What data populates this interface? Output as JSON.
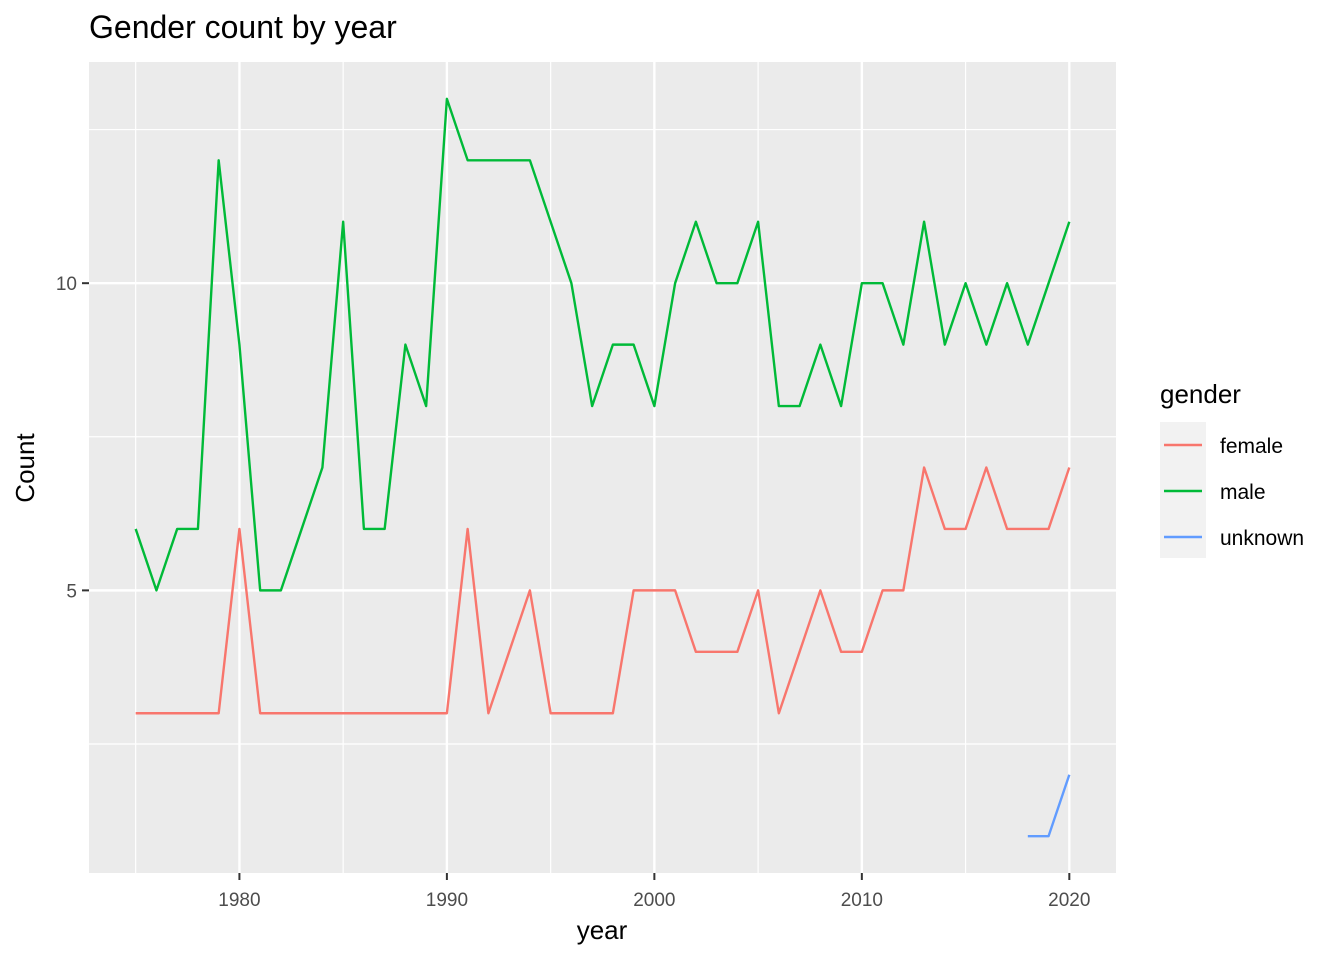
{
  "chart_data": {
    "type": "line",
    "title": "Gender count by year",
    "xlabel": "year",
    "ylabel": "Count",
    "xlim": [
      1972.75,
      2022.25
    ],
    "ylim": [
      0.4,
      13.6
    ],
    "x_ticks": [
      1980,
      1990,
      2000,
      2010,
      2020
    ],
    "y_ticks": [
      5,
      10
    ],
    "x_tick_labels": [
      "1980",
      "1990",
      "2000",
      "2010",
      "2020"
    ],
    "y_tick_labels": [
      "5",
      "10"
    ],
    "grid": true,
    "legend_title": "gender",
    "legend_position": "right",
    "series": [
      {
        "name": "female",
        "color": "#F8766D",
        "x": [
          1975,
          1976,
          1977,
          1978,
          1979,
          1980,
          1981,
          1982,
          1983,
          1984,
          1985,
          1986,
          1987,
          1988,
          1989,
          1990,
          1991,
          1992,
          1993,
          1994,
          1995,
          1996,
          1997,
          1998,
          1999,
          2000,
          2001,
          2002,
          2003,
          2004,
          2005,
          2006,
          2007,
          2008,
          2009,
          2010,
          2011,
          2012,
          2013,
          2014,
          2015,
          2016,
          2017,
          2018,
          2019,
          2020
        ],
        "values": [
          3,
          3,
          3,
          3,
          3,
          6,
          3,
          3,
          3,
          3,
          3,
          3,
          3,
          3,
          3,
          3,
          6,
          3,
          4,
          5,
          3,
          3,
          3,
          3,
          5,
          5,
          5,
          4,
          4,
          4,
          5,
          3,
          4,
          5,
          4,
          4,
          5,
          5,
          7,
          6,
          6,
          7,
          6,
          6,
          6,
          7
        ]
      },
      {
        "name": "male",
        "color": "#00BA38",
        "x": [
          1975,
          1976,
          1977,
          1978,
          1979,
          1980,
          1981,
          1982,
          1983,
          1984,
          1985,
          1986,
          1987,
          1988,
          1989,
          1990,
          1991,
          1992,
          1993,
          1994,
          1995,
          1996,
          1997,
          1998,
          1999,
          2000,
          2001,
          2002,
          2003,
          2004,
          2005,
          2006,
          2007,
          2008,
          2009,
          2010,
          2011,
          2012,
          2013,
          2014,
          2015,
          2016,
          2017,
          2018,
          2019,
          2020
        ],
        "values": [
          6,
          5,
          6,
          6,
          12,
          9,
          5,
          5,
          6,
          7,
          11,
          6,
          6,
          9,
          8,
          13,
          12,
          12,
          12,
          12,
          11,
          10,
          8,
          9,
          9,
          8,
          10,
          11,
          10,
          10,
          11,
          8,
          8,
          9,
          8,
          10,
          10,
          9,
          11,
          9,
          10,
          9,
          10,
          9,
          10,
          11
        ]
      },
      {
        "name": "unknown",
        "color": "#619CFF",
        "x": [
          2018,
          2019,
          2020
        ],
        "values": [
          1,
          1,
          2
        ]
      }
    ]
  }
}
